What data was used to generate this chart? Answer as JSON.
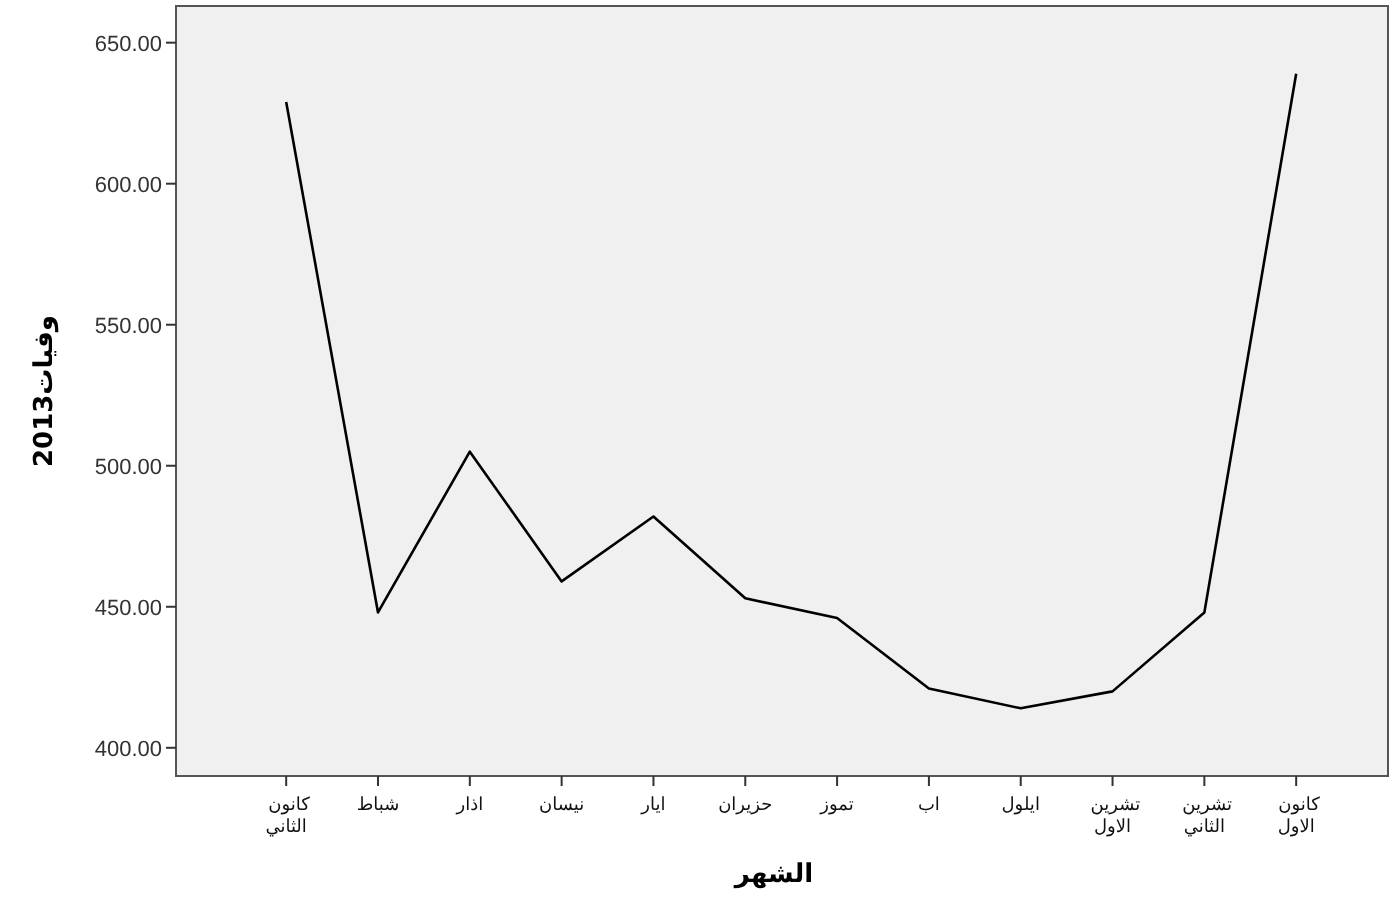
{
  "chart_data": {
    "type": "line",
    "xlabel": "الشهر",
    "ylabel": "وفيات2013",
    "categories": [
      "كانون الثاني",
      "شباط",
      "اذار",
      "نيسان",
      "ايار",
      "حزيران",
      "تموز",
      "اب",
      "ايلول",
      "تشرين الاول",
      "تشرين الثاني",
      "كانون الاول"
    ],
    "series": [
      {
        "color": "#000000",
        "values": [
          629,
          448,
          505,
          459,
          482,
          453,
          446,
          421,
          414,
          420,
          448,
          639
        ]
      }
    ],
    "ylim": [
      390,
      663
    ],
    "yticks": [
      {
        "value": 400,
        "label": "400.00"
      },
      {
        "value": 450,
        "label": "450.00"
      },
      {
        "value": 500,
        "label": "500.00"
      },
      {
        "value": 550,
        "label": "550.00"
      },
      {
        "value": 600,
        "label": "600.00"
      },
      {
        "value": 650,
        "label": "650.00"
      }
    ],
    "grid": false,
    "marker": "none",
    "line_style": "solid"
  }
}
